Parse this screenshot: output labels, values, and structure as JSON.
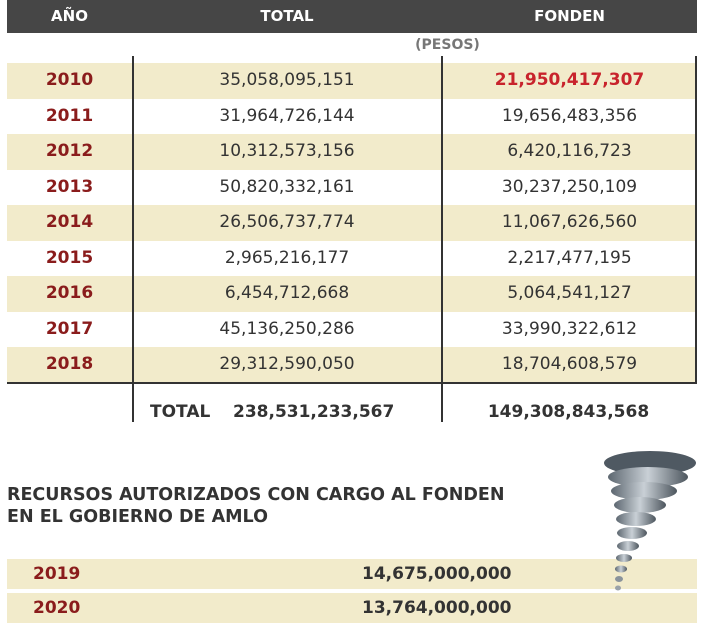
{
  "header": {
    "year": "AÑO",
    "total": "TOTAL",
    "fonden": "FONDEN"
  },
  "unit_label": "(PESOS)",
  "rows": [
    {
      "year": "2010",
      "total": "35,058,095,151",
      "fonden": "21,950,417,307"
    },
    {
      "year": "2011",
      "total": "31,964,726,144",
      "fonden": "19,656,483,356"
    },
    {
      "year": "2012",
      "total": "10,312,573,156",
      "fonden": "6,420,116,723"
    },
    {
      "year": "2013",
      "total": "50,820,332,161",
      "fonden": "30,237,250,109"
    },
    {
      "year": "2014",
      "total": "26,506,737,774",
      "fonden": "11,067,626,560"
    },
    {
      "year": "2015",
      "total": "2,965,216,177",
      "fonden": "2,217,477,195"
    },
    {
      "year": "2016",
      "total": "6,454,712,668",
      "fonden": "5,064,541,127"
    },
    {
      "year": "2017",
      "total": "45,136,250,286",
      "fonden": "33,990,322,612"
    },
    {
      "year": "2018",
      "total": "29,312,590,050",
      "fonden": "18,704,608,579"
    }
  ],
  "totals": {
    "label": "TOTAL",
    "total": "238,531,233,567",
    "fonden": "149,308,843,568"
  },
  "amlo": {
    "title_line1": "RECURSOS AUTORIZADOS CON CARGO AL FONDEN",
    "title_line2": "EN EL GOBIERNO DE AMLO",
    "rows": [
      {
        "year": "2019",
        "value": "14,675,000,000"
      },
      {
        "year": "2020",
        "value": "13,764,000,000"
      }
    ]
  },
  "colors": {
    "header_bg": "#464646",
    "row_shade": "#f2ebcb",
    "year_text": "#8a1c1c",
    "highlight_value": "#c8232c",
    "text": "#333333"
  },
  "icons": {
    "illustration": "tornado-icon"
  }
}
